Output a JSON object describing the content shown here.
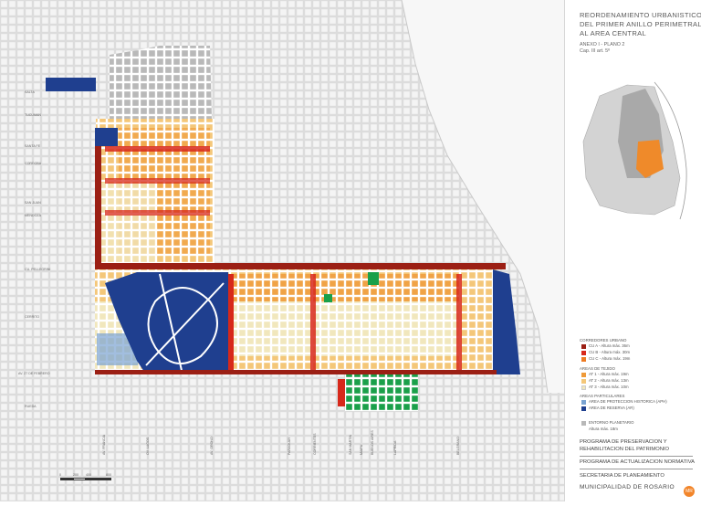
{
  "title": {
    "line1": "REORDENAMIENTO URBANISTICO",
    "line2": "DEL PRIMER ANILLO PERIMETRAL",
    "line3": "AL AREA CENTRAL"
  },
  "annex": {
    "line1": "ANEXO I - PLANO 2",
    "line2": "Cap. III art. 5º"
  },
  "legend": {
    "corridors": {
      "heading": "CORREDORES URBANO",
      "items": [
        {
          "label": "CU A - Altura máx. 36m",
          "color": "#9b1f14"
        },
        {
          "label": "CU B - Altura máx. 30m",
          "color": "#d7281a"
        },
        {
          "label": "CU C - Altura máx. 19m",
          "color": "#ee7a22"
        }
      ]
    },
    "tissue": {
      "heading": "AREAS DE TEJIDO",
      "items": [
        {
          "label": "AT 1 - Altura máx. 19m",
          "color": "#ef9a39"
        },
        {
          "label": "AT 2 - Altura máx. 13m",
          "color": "#f4c779"
        },
        {
          "label": "AT 3 - Altura máx. 10m",
          "color": "#f1e7bd"
        }
      ]
    },
    "particular": {
      "heading": "AREAS PARTICULARES",
      "items": [
        {
          "label": "AREA DE PROTECCION HISTORICA (APH)",
          "color": "#7aa3d2"
        },
        {
          "label": "AREA DE RESERVA (AR)",
          "color": "#1f3f8f"
        }
      ]
    },
    "planetary": {
      "label": "ENTORNO PLANETARIO",
      "sublabel": "Altura máx. 18m",
      "color": "#b8b8b8"
    }
  },
  "programs": {
    "line1": "PROGRAMA DE PRESERVACION Y",
    "line2": "REHABILITACION DEL PATRIMONIO",
    "line3": "PROGRAMA DE ACTUALIZACION NORMATIVA"
  },
  "institution": {
    "line1": "SECRETARIA DE PLANEAMIENTO",
    "line2": "MUNICIPALIDAD DE ROSARIO",
    "logo_text": "MR"
  },
  "scale_bar": {
    "ticks": [
      "0",
      "200",
      "400",
      "800"
    ]
  },
  "streets_left": [
    "SALTA",
    "TUCUMAN",
    "SANTA FE",
    "CORDOBA",
    "SAN JUAN",
    "MENDOZA",
    "CU. PELLEGRINI",
    "CERRITO",
    "AV. 27 DE FEBRERO",
    "RUEDA"
  ],
  "streets_bottom": [
    "AV. FRANCIA",
    "OV. LAGOS",
    "AV. ORONO",
    "PARAGUAY",
    "CORRIENTES",
    "SAN MARTIN",
    "MAIPU",
    "BUENOS AIRES",
    "LAPRIDA",
    "BELGRANO"
  ],
  "colors": {
    "street_grid": "#dcdcdc",
    "block_base": "#f3f3f3",
    "planetary": "#b8b8b8",
    "park": "#1f3f8f",
    "green": "#1aa04a",
    "river": "#e8e8e8"
  }
}
